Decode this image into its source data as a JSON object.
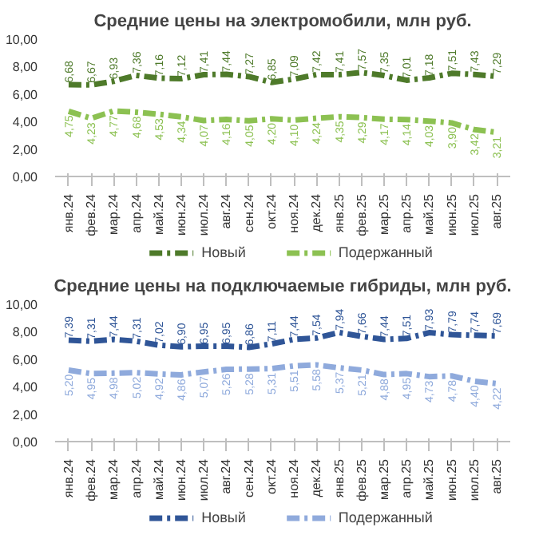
{
  "chart_data": [
    {
      "type": "line",
      "title": "Средние цены на электромобили, млн руб.",
      "categories": [
        "янв.24",
        "фев.24",
        "мар.24",
        "апр.24",
        "май.24",
        "июн.24",
        "июл.24",
        "авг.24",
        "сен.24",
        "окт.24",
        "ноя.24",
        "дек.24",
        "янв.25",
        "фев.25",
        "мар.25",
        "апр.25",
        "май.25",
        "июн.25",
        "июл.25",
        "авг.25"
      ],
      "series": [
        {
          "name": "Новый",
          "color": "#4e7a2a",
          "values": [
            6.68,
            6.67,
            6.93,
            7.36,
            7.16,
            7.12,
            7.41,
            7.44,
            7.27,
            6.85,
            7.09,
            7.42,
            7.41,
            7.57,
            7.35,
            7.01,
            7.18,
            7.51,
            7.43,
            7.29
          ],
          "value_labels": [
            "6,68",
            "6,67",
            "6,93",
            "7,36",
            "7,16",
            "7,12",
            "7,41",
            "7,44",
            "7,27",
            "6,85",
            "7,09",
            "7,42",
            "7,41",
            "7,57",
            "7,35",
            "7,01",
            "7,18",
            "7,51",
            "7,43",
            "7,29"
          ]
        },
        {
          "name": "Подержанный",
          "color": "#8cc152",
          "values": [
            4.75,
            4.23,
            4.77,
            4.68,
            4.53,
            4.34,
            4.07,
            4.16,
            4.05,
            4.2,
            4.1,
            4.24,
            4.35,
            4.29,
            4.17,
            4.14,
            4.03,
            3.9,
            3.42,
            3.21
          ],
          "value_labels": [
            "4,75",
            "4,23",
            "4,77",
            "4,68",
            "4,53",
            "4,34",
            "4,07",
            "4,16",
            "4,05",
            "4,20",
            "4,10",
            "4,24",
            "4,35",
            "4,29",
            "4,17",
            "4,14",
            "4,03",
            "3,90",
            "3,42",
            "3,21"
          ]
        }
      ],
      "ylim": [
        0,
        10
      ],
      "yticks": [
        {
          "value": 0,
          "label": "0,00"
        },
        {
          "value": 2,
          "label": "2,00"
        },
        {
          "value": 4,
          "label": "4,00"
        },
        {
          "value": 6,
          "label": "6,00"
        },
        {
          "value": 8,
          "label": "8,00"
        },
        {
          "value": 10,
          "label": "10,00"
        }
      ],
      "line_style": "dashed",
      "legend": "bottom",
      "data_labels": true
    },
    {
      "type": "line",
      "title": "Средние цены на подключаемые гибриды, млн руб.",
      "categories": [
        "янв.24",
        "фев.24",
        "мар.24",
        "апр.24",
        "май.24",
        "июн.24",
        "июл.24",
        "авг.24",
        "сен.24",
        "окт.24",
        "ноя.24",
        "дек.24",
        "янв.25",
        "фев.25",
        "мар.25",
        "апр.25",
        "май.25",
        "июн.25",
        "июл.25",
        "авг.25"
      ],
      "series": [
        {
          "name": "Новый",
          "color": "#2f5597",
          "values": [
            7.39,
            7.31,
            7.44,
            7.31,
            7.02,
            6.9,
            6.95,
            6.95,
            6.86,
            7.11,
            7.44,
            7.54,
            7.94,
            7.66,
            7.44,
            7.51,
            7.93,
            7.79,
            7.74,
            7.69
          ],
          "value_labels": [
            "7,39",
            "7,31",
            "7,44",
            "7,31",
            "7,02",
            "6,90",
            "6,95",
            "6,95",
            "6,86",
            "7,11",
            "7,44",
            "7,54",
            "7,94",
            "7,66",
            "7,44",
            "7,51",
            "7,93",
            "7,79",
            "7,74",
            "7,69"
          ]
        },
        {
          "name": "Подержанный",
          "color": "#8faadc",
          "values": [
            5.2,
            4.95,
            4.98,
            5.02,
            4.92,
            4.86,
            5.07,
            5.26,
            5.28,
            5.31,
            5.51,
            5.58,
            5.37,
            5.21,
            4.88,
            4.95,
            4.73,
            4.78,
            4.4,
            4.22
          ],
          "value_labels": [
            "5,20",
            "4,95",
            "4,98",
            "5,02",
            "4,92",
            "4,86",
            "5,07",
            "5,26",
            "5,28",
            "5,31",
            "5,51",
            "5,58",
            "5,37",
            "5,21",
            "4,88",
            "4,95",
            "4,73",
            "4,78",
            "4,40",
            "4,22"
          ]
        }
      ],
      "ylim": [
        0,
        10
      ],
      "yticks": [
        {
          "value": 0,
          "label": "0,00"
        },
        {
          "value": 2,
          "label": "2,00"
        },
        {
          "value": 4,
          "label": "4,00"
        },
        {
          "value": 6,
          "label": "6,00"
        },
        {
          "value": 8,
          "label": "8,00"
        },
        {
          "value": 10,
          "label": "10,00"
        }
      ],
      "line_style": "dashed",
      "legend": "bottom",
      "data_labels": true
    }
  ]
}
